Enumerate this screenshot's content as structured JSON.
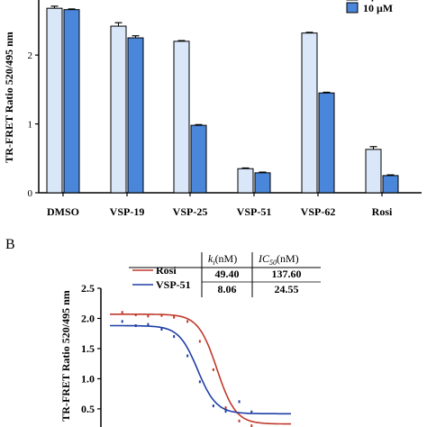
{
  "chart_data": [
    {
      "type": "bar",
      "panel": "",
      "ylabel": "TR-FRET Ratio 520/495 nm",
      "xlabel": "",
      "ylim": [
        0,
        2.8
      ],
      "yticks": [
        "0",
        "1",
        "2"
      ],
      "categories": [
        "DMSO",
        "VSP-19",
        "VSP-25",
        "VSP-51",
        "VSP-62",
        "Rosi"
      ],
      "legend_position": "top-right",
      "series": [
        {
          "name": "1 μM",
          "color": "#d9e7f8",
          "values": [
            2.68,
            2.42,
            2.2,
            0.35,
            2.32,
            0.63
          ],
          "errors": [
            0.03,
            0.05,
            0.01,
            0.01,
            0.01,
            0.04
          ]
        },
        {
          "name": "10 μM",
          "color": "#4a86d9",
          "values": [
            2.66,
            2.25,
            0.98,
            0.29,
            1.45,
            0.25
          ],
          "errors": [
            0.01,
            0.03,
            0.01,
            0.01,
            0.01,
            0.01
          ]
        }
      ]
    },
    {
      "type": "scatter",
      "panel": "B",
      "ylabel": "TR-FRET Ratio 520/495 nm",
      "yticks": [
        "2.5",
        "2.0",
        "1.5",
        "1.0",
        "0.5"
      ],
      "ylim": [
        0.2,
        2.5
      ],
      "log_x": true,
      "xlim": [
        0.01,
        100000
      ],
      "legend_position": "top-left",
      "series": [
        {
          "name": "Rosi",
          "color": "#c0392b",
          "top": 2.07,
          "bottom": 0.25,
          "ic50": 137.6,
          "x": [
            0.03,
            0.1,
            0.3,
            1,
            3,
            10,
            30,
            100,
            300,
            1000,
            3000
          ],
          "y": [
            2.1,
            2.06,
            2.04,
            2.05,
            2.02,
            1.95,
            1.62,
            1.15,
            0.52,
            0.3,
            0.22
          ]
        },
        {
          "name": "VSP-51",
          "color": "#1f3fa6",
          "top": 1.88,
          "bottom": 0.42,
          "ic50": 24.55,
          "x": [
            0.03,
            0.1,
            0.3,
            1,
            3,
            10,
            30,
            100,
            300,
            1000,
            3000
          ],
          "y": [
            1.95,
            1.88,
            1.9,
            1.82,
            1.7,
            1.38,
            0.95,
            0.55,
            0.46,
            0.62,
            0.45
          ]
        }
      ],
      "table": {
        "headers": [
          "k_i(nM)",
          "IC_50(nM)"
        ],
        "rows": [
          {
            "label": "Rosi",
            "ki": "49.40",
            "ic50": "137.60"
          },
          {
            "label": "VSP-51",
            "ki": "8.06",
            "ic50": "24.55"
          }
        ]
      }
    }
  ]
}
